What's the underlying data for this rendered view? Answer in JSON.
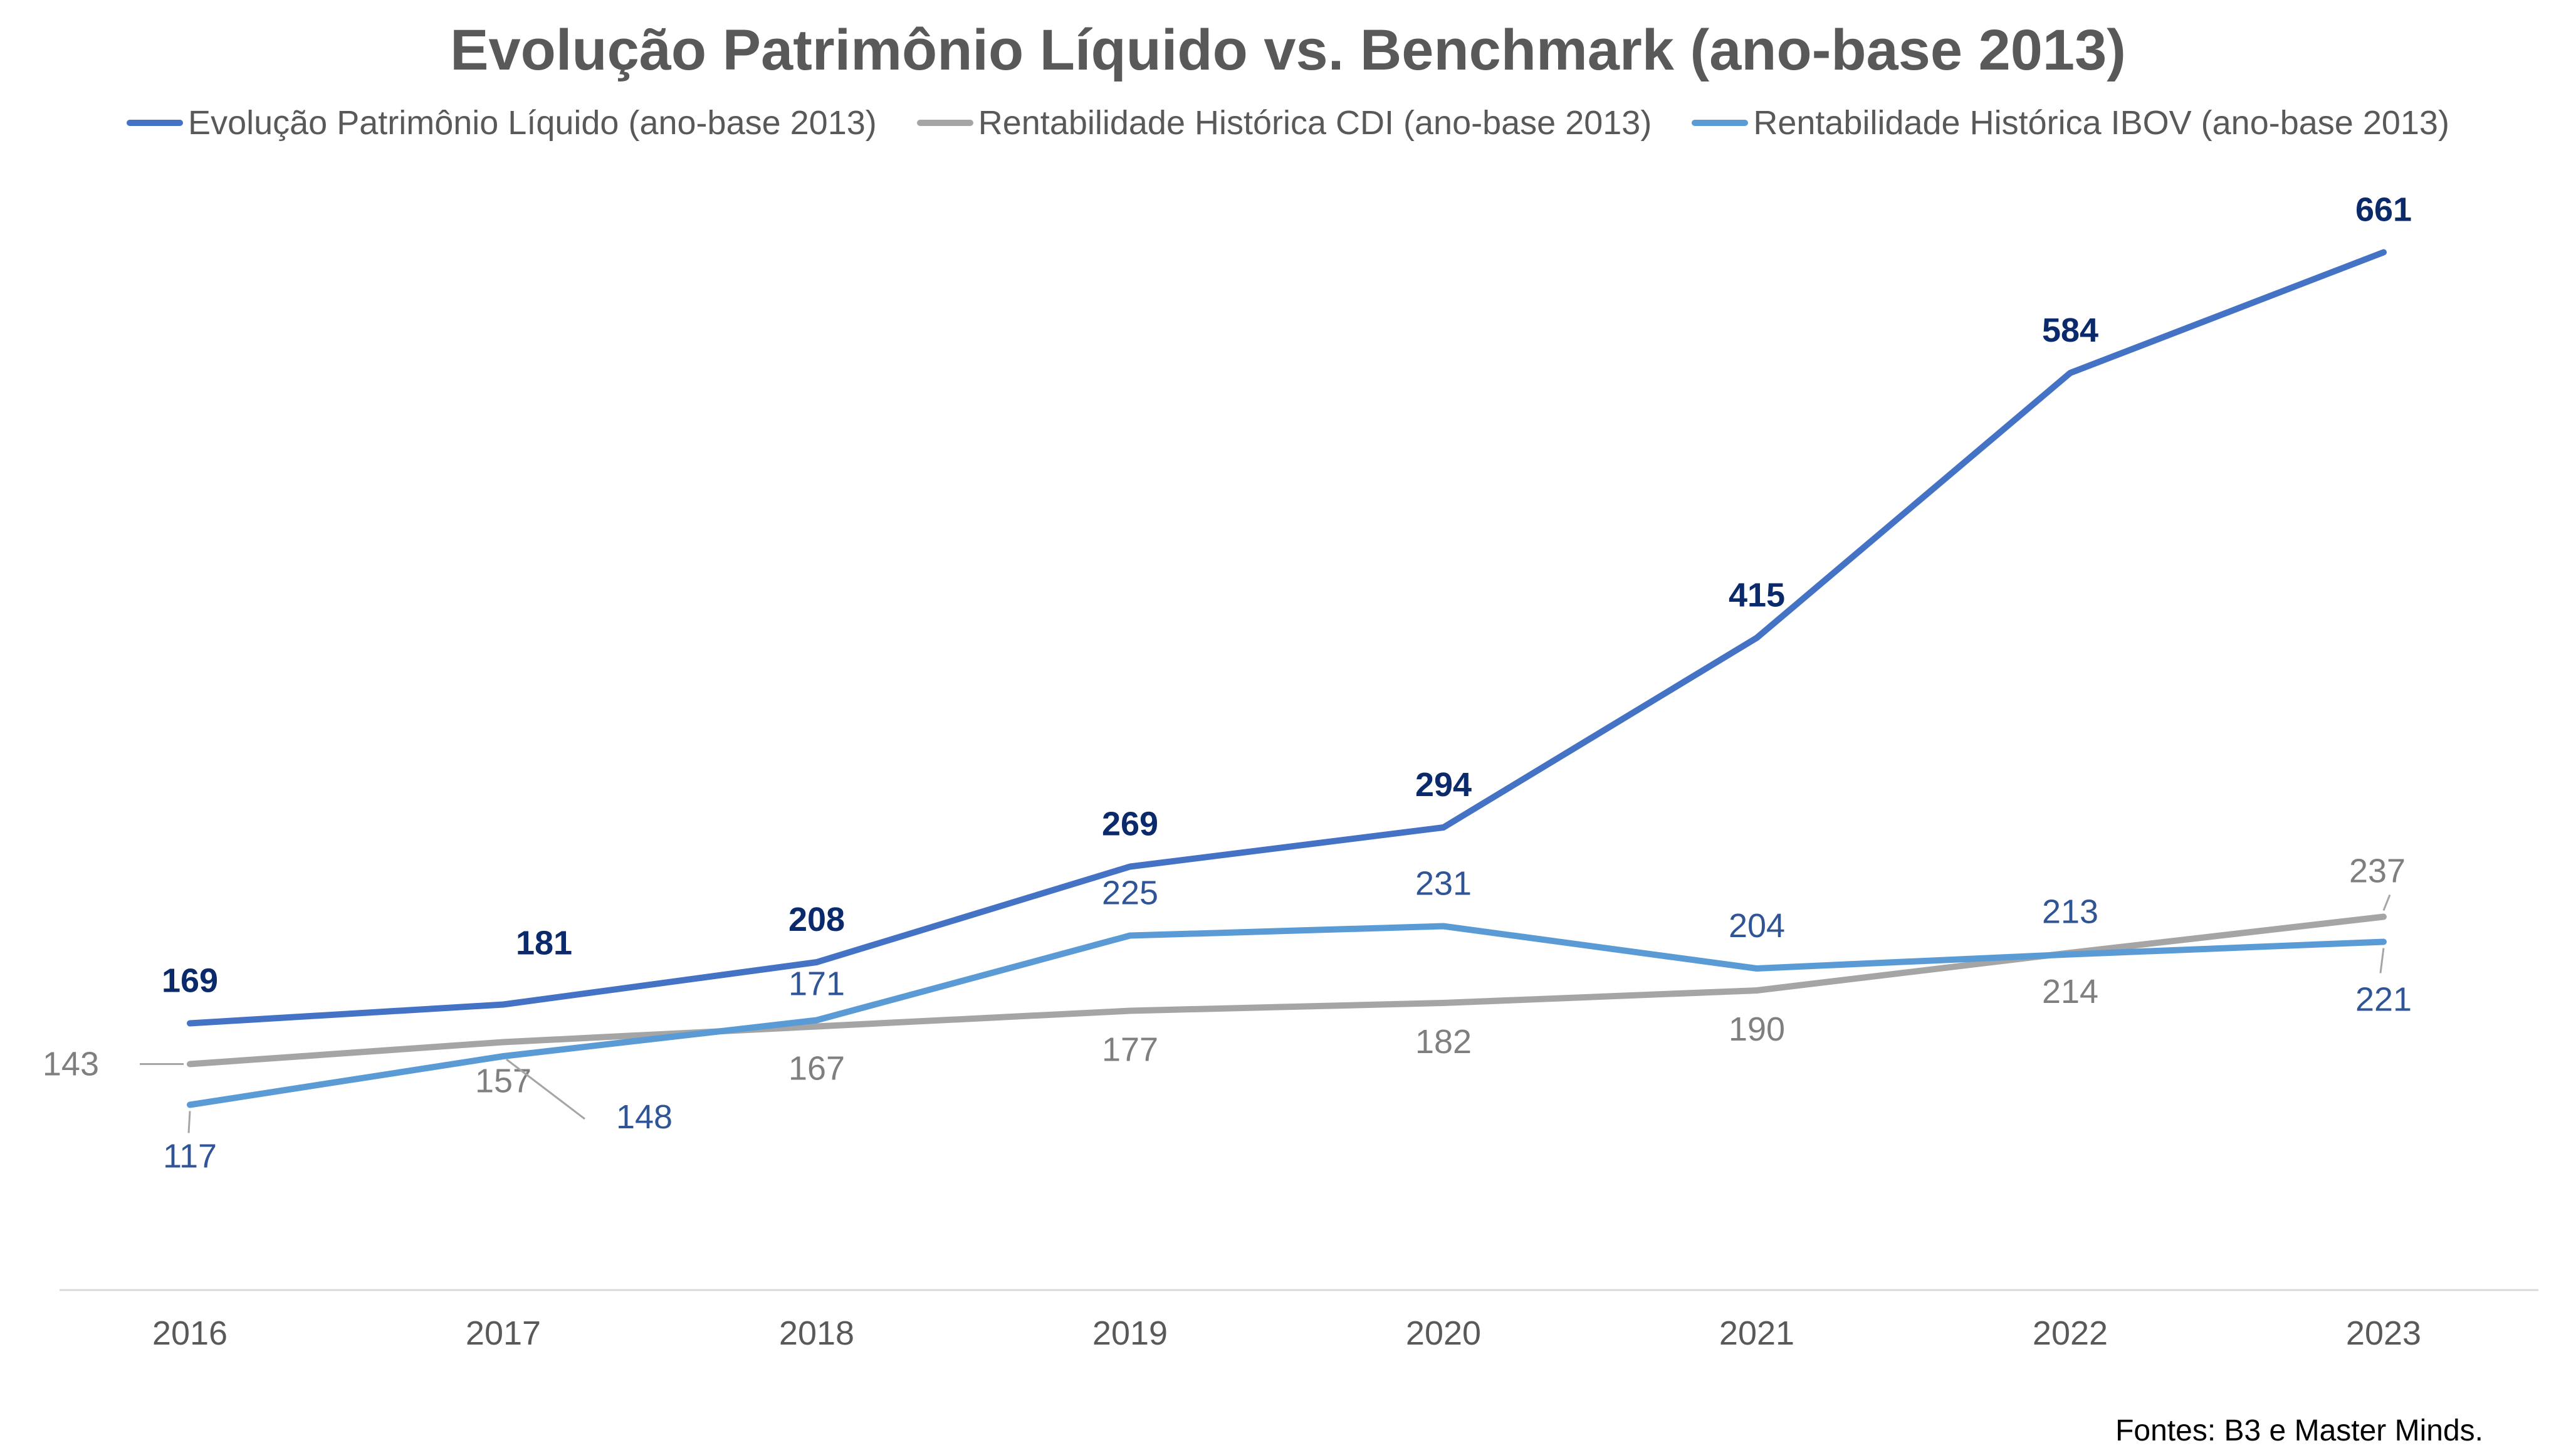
{
  "chart_data": {
    "type": "line",
    "title": "Evolução Patrimônio Líquido vs. Benchmark (ano-base 2013)",
    "xlabel": "",
    "ylabel": "",
    "categories": [
      "2016",
      "2017",
      "2018",
      "2019",
      "2020",
      "2021",
      "2022",
      "2023"
    ],
    "ylim": [
      0,
      700
    ],
    "grid": false,
    "legend_position": "top",
    "series": [
      {
        "name": "Evolução Patrimônio Líquido (ano-base 2013)",
        "color": "#4472C4",
        "label_color": "#0B2A6B",
        "label_bold": true,
        "values": [
          169,
          181,
          208,
          269,
          294,
          415,
          584,
          661
        ]
      },
      {
        "name": "Rentabilidade Histórica CDI (ano-base 2013)",
        "color": "#A5A5A5",
        "label_color": "#7F7F7F",
        "label_bold": false,
        "values": [
          143,
          157,
          167,
          177,
          182,
          190,
          214,
          237
        ]
      },
      {
        "name": "Rentabilidade Histórica IBOV (ano-base 2013)",
        "color": "#5B9BD5",
        "label_color": "#2F5597",
        "label_bold": false,
        "values": [
          117,
          148,
          171,
          225,
          231,
          204,
          213,
          221
        ]
      }
    ]
  },
  "source_note": "Fontes: B3 e Master Minds."
}
